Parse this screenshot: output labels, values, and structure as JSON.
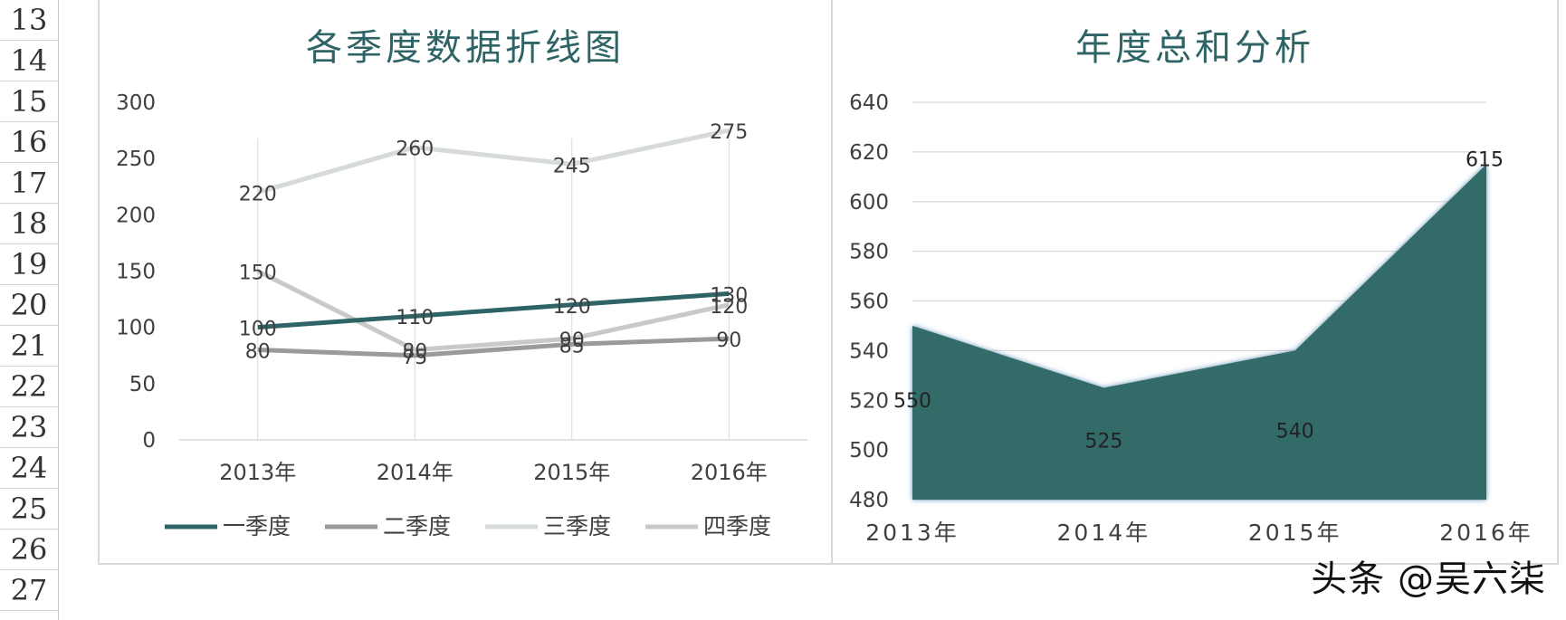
{
  "row_numbers": [
    "13",
    "14",
    "15",
    "16",
    "17",
    "18",
    "19",
    "20",
    "21",
    "22",
    "23",
    "24",
    "25",
    "26",
    "27"
  ],
  "watermark": "头条 @吴六柒",
  "colors": {
    "q1": "#2f6466",
    "q2": "#9a9a9a",
    "q3": "#d6dbd9",
    "q4": "#c9c9c9",
    "area_fill": "#336b69",
    "area_edge": "#5b8fb8",
    "grid": "#d9d9d9",
    "title": "#2f6466",
    "text": "#404040"
  },
  "chart_data": [
    {
      "type": "line",
      "title": "各季度数据折线图",
      "categories": [
        "2013年",
        "2014年",
        "2015年",
        "2016年"
      ],
      "ylim": [
        0,
        300
      ],
      "yticks": [
        0,
        50,
        100,
        150,
        200,
        250,
        300
      ],
      "grid": "vertical",
      "legend": "bottom",
      "data_labels": true,
      "series": [
        {
          "name": "一季度",
          "values": [
            100,
            110,
            120,
            130
          ]
        },
        {
          "name": "二季度",
          "values": [
            80,
            75,
            85,
            90
          ]
        },
        {
          "name": "三季度",
          "values": [
            220,
            260,
            245,
            275
          ]
        },
        {
          "name": "四季度",
          "values": [
            150,
            80,
            90,
            120
          ]
        }
      ]
    },
    {
      "type": "area",
      "title": "年度总和分析",
      "categories": [
        "2013年",
        "2014年",
        "2015年",
        "2016年"
      ],
      "ylim": [
        480,
        640
      ],
      "yticks": [
        480,
        500,
        520,
        540,
        560,
        580,
        600,
        620,
        640
      ],
      "grid": "horizontal",
      "data_labels": true,
      "values": [
        550,
        525,
        540,
        615
      ]
    }
  ]
}
